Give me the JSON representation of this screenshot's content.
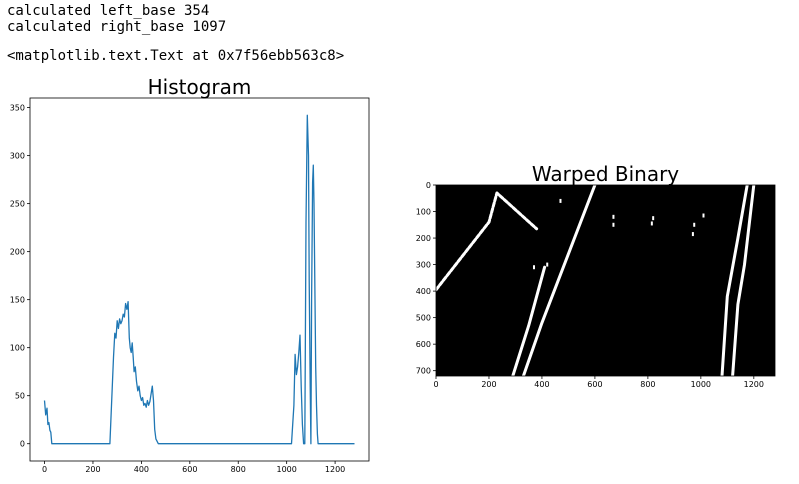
{
  "output": {
    "line1": "calculated left_base 354",
    "line2": "calculated right_base 1097",
    "repr": "<matplotlib.text.Text at 0x7f56ebb563c8>"
  },
  "chart_data": [
    {
      "type": "line",
      "title": "Histogram",
      "xlim": [
        -60,
        1340
      ],
      "ylim": [
        -18,
        360
      ],
      "xticks": [
        0,
        200,
        400,
        600,
        800,
        1000,
        1200
      ],
      "yticks": [
        0,
        50,
        100,
        150,
        200,
        250,
        300,
        350
      ],
      "color": "#1f77b4",
      "series": [
        {
          "x": [
            0,
            5,
            10,
            14,
            18,
            22,
            26,
            30,
            40,
            100,
            200,
            270,
            280,
            285,
            290,
            295,
            300,
            305,
            310,
            315,
            320,
            325,
            330,
            335,
            340,
            345,
            350,
            354,
            358,
            362,
            366,
            370,
            375,
            380,
            385,
            390,
            395,
            400,
            405,
            410,
            415,
            420,
            425,
            430,
            435,
            440,
            445,
            450,
            455,
            460,
            470,
            600,
            800,
            1000,
            1020,
            1030,
            1035,
            1040,
            1045,
            1050,
            1055,
            1060,
            1065,
            1070,
            1075,
            1080,
            1085,
            1090,
            1093,
            1097,
            1100,
            1103,
            1107,
            1110,
            1113,
            1117,
            1120,
            1123,
            1127,
            1130,
            1135,
            1140,
            1150,
            1280
          ],
          "y": [
            45,
            30,
            37,
            20,
            22,
            14,
            12,
            0,
            0,
            0,
            0,
            0,
            60,
            90,
            115,
            110,
            128,
            120,
            130,
            125,
            128,
            135,
            132,
            146,
            140,
            148,
            110,
            100,
            95,
            105,
            90,
            75,
            80,
            65,
            55,
            60,
            50,
            45,
            48,
            40,
            42,
            38,
            45,
            40,
            44,
            52,
            60,
            45,
            15,
            5,
            0,
            0,
            0,
            0,
            0,
            40,
            93,
            72,
            80,
            95,
            113,
            60,
            20,
            0,
            0,
            230,
            342,
            300,
            170,
            60,
            0,
            150,
            272,
            290,
            250,
            150,
            80,
            40,
            10,
            0,
            0,
            0,
            0,
            0
          ]
        }
      ]
    },
    {
      "type": "heatmap",
      "title": "Warped Binary",
      "xlim": [
        0,
        1280
      ],
      "ylim": [
        720,
        0
      ],
      "xticks": [
        0,
        200,
        400,
        600,
        800,
        1000,
        1200
      ],
      "yticks": [
        0,
        100,
        200,
        300,
        400,
        500,
        600,
        700
      ],
      "colormap": [
        "#000000",
        "#ffffff"
      ],
      "lanes": [
        {
          "points": [
            [
              0,
              395
            ],
            [
              200,
              140
            ],
            [
              230,
              30
            ],
            [
              380,
              165
            ]
          ],
          "dash": true
        },
        {
          "points": [
            [
              290,
              720
            ],
            [
              350,
              530
            ],
            [
              410,
              310
            ]
          ],
          "dash": false
        },
        {
          "points": [
            [
              330,
              720
            ],
            [
              400,
              520
            ],
            [
              600,
              0
            ]
          ],
          "dash": false
        },
        {
          "points": [
            [
              1080,
              720
            ],
            [
              1100,
              420
            ],
            [
              1140,
              200
            ],
            [
              1175,
              0
            ]
          ],
          "dash": false
        },
        {
          "points": [
            [
              1120,
              720
            ],
            [
              1140,
              450
            ],
            [
              1165,
              300
            ],
            [
              1200,
              0
            ]
          ],
          "dash": false
        }
      ],
      "blobs": [
        [
          470,
          60
        ],
        [
          420,
          300
        ],
        [
          370,
          310
        ],
        [
          670,
          120
        ],
        [
          670,
          150
        ],
        [
          820,
          125
        ],
        [
          815,
          145
        ],
        [
          1010,
          115
        ],
        [
          975,
          150
        ],
        [
          970,
          185
        ]
      ]
    }
  ]
}
